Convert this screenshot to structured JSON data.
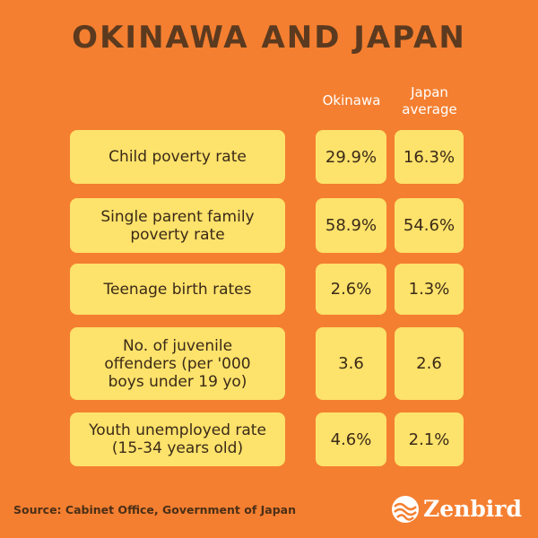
{
  "title": "OKINAWA AND JAPAN",
  "table": {
    "columns": [
      "Okinawa",
      "Japan average"
    ],
    "rows": [
      [
        "Child poverty rate",
        "29.9%",
        "16.3%"
      ],
      [
        "Single parent family poverty rate",
        "58.9%",
        "54.6%"
      ],
      [
        "Teenage birth rates",
        "2.6%",
        "1.3%"
      ],
      [
        "No. of juvenile offenders (per '000 boys under 19 yo)",
        "3.6",
        "2.6"
      ],
      [
        "Youth unemployed rate (15-34 years old)",
        "4.6%",
        "2.1%"
      ]
    ]
  },
  "source": "Source: Cabinet Office, Government of Japan",
  "brand": "Zenbird"
}
